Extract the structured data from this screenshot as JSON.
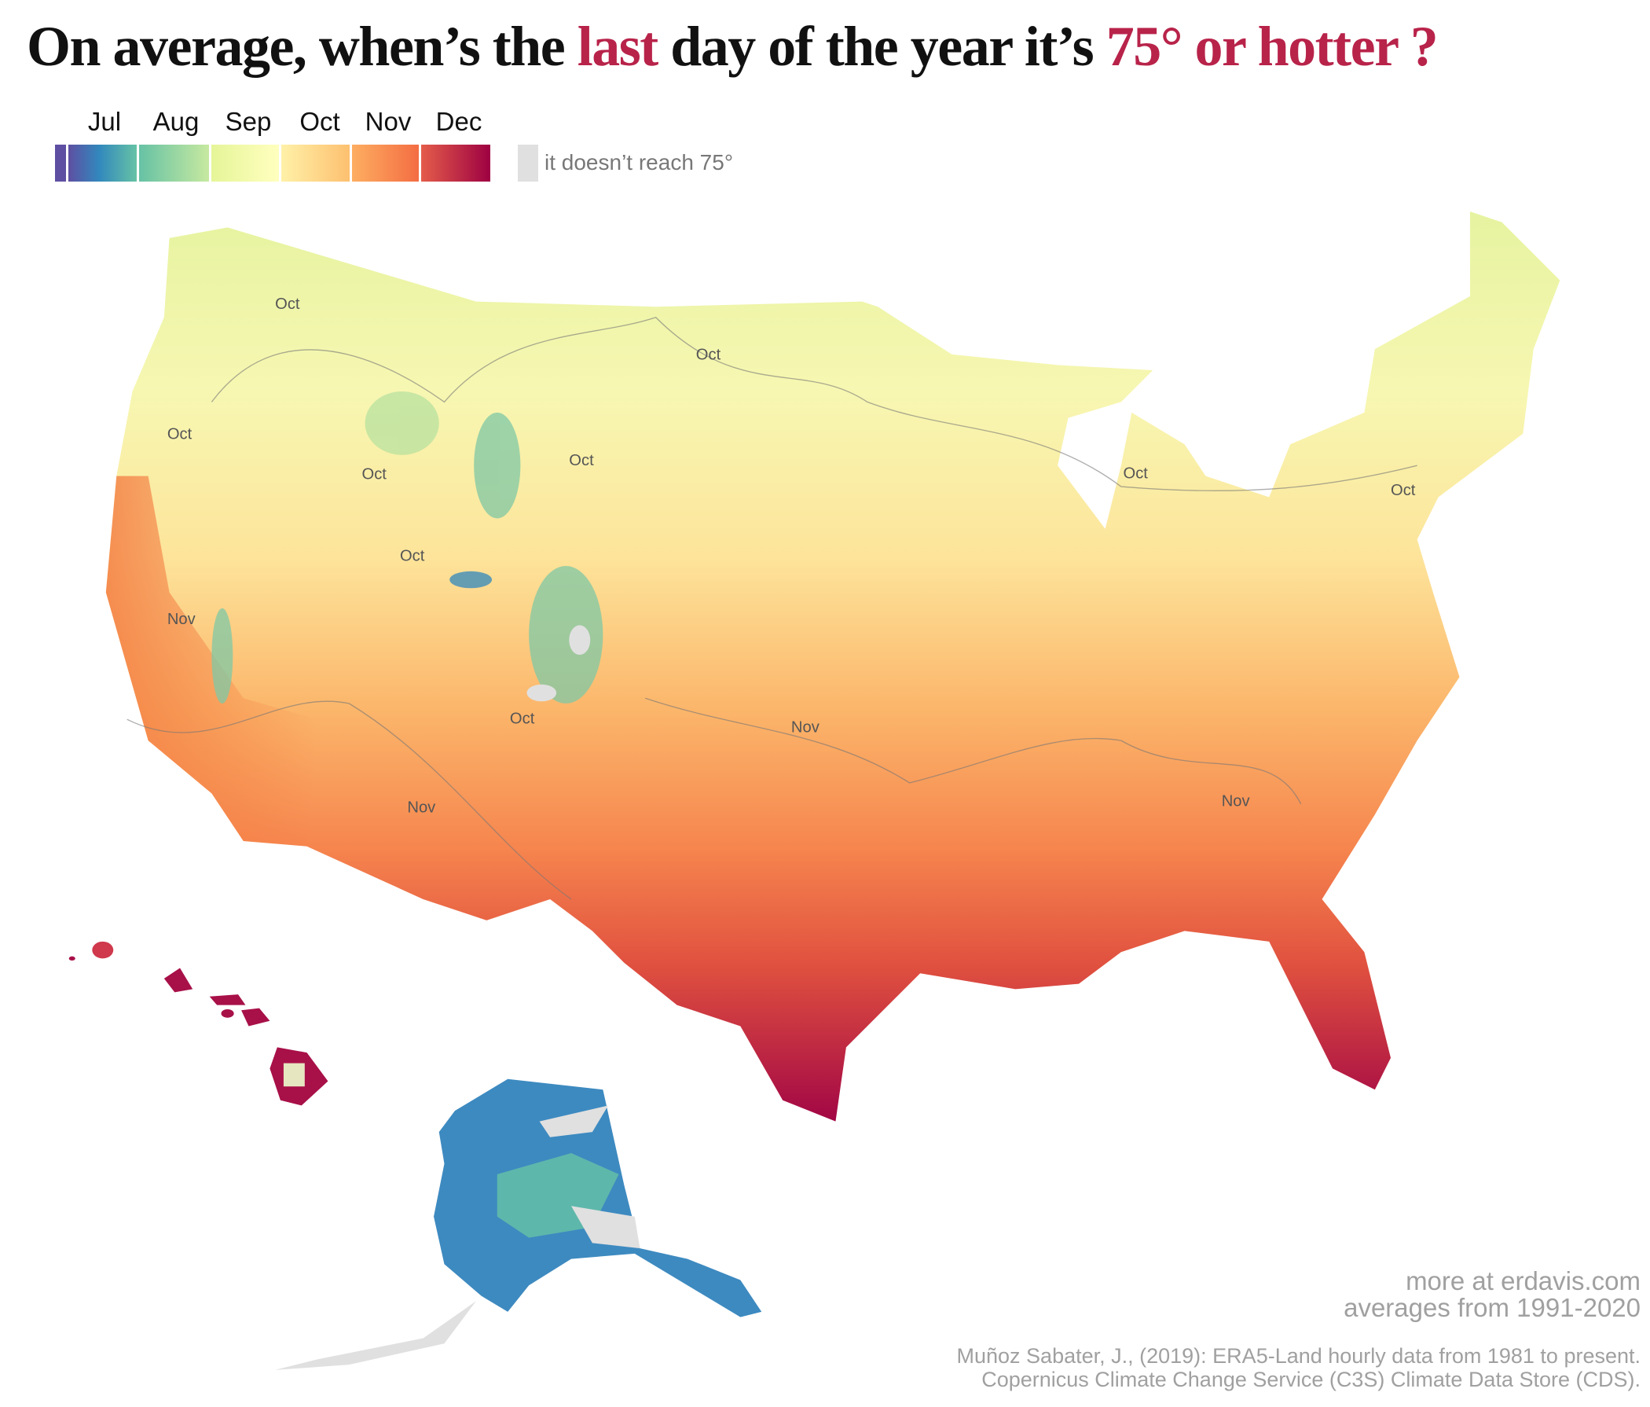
{
  "title": {
    "part1": "On average, when’s the ",
    "highlight1": "last",
    "part2": " day of the year it’s ",
    "highlight2": "75° or hotter ?",
    "highlight_color": "#b8234a"
  },
  "legend": {
    "months": [
      "Jul",
      "Aug",
      "Sep",
      "Oct",
      "Nov",
      "Dec"
    ],
    "colors": {
      "jul": [
        "#5e4fa2",
        "#3288bd",
        "#66c2a5"
      ],
      "aug": [
        "#66c2a5",
        "#abdda4"
      ],
      "sep": [
        "#e6f598",
        "#ffffbf"
      ],
      "oct": [
        "#fee08b",
        "#fdae61"
      ],
      "nov": [
        "#fdae61",
        "#f46d43"
      ],
      "dec": [
        "#d53e4f",
        "#9e0142"
      ]
    },
    "no_data_label": "it doesn’t reach 75°",
    "no_data_color": "#e0e0e0"
  },
  "map": {
    "regions": [
      "Contiguous US",
      "Alaska",
      "Hawaii"
    ],
    "contour_labels": [
      "Oct",
      "Oct",
      "Oct",
      "Oct",
      "Oct",
      "Oct",
      "Oct",
      "Oct",
      "Nov",
      "Nov",
      "Nov",
      "Nov"
    ]
  },
  "credits": {
    "site": "more at erdavis.com",
    "period": "averages from 1991-2020",
    "source_line1": "Muñoz Sabater, J., (2019): ERA5-Land hourly data from 1981 to present.",
    "source_line2": "Copernicus Climate Change Service (C3S) Climate Data Store (CDS)."
  }
}
